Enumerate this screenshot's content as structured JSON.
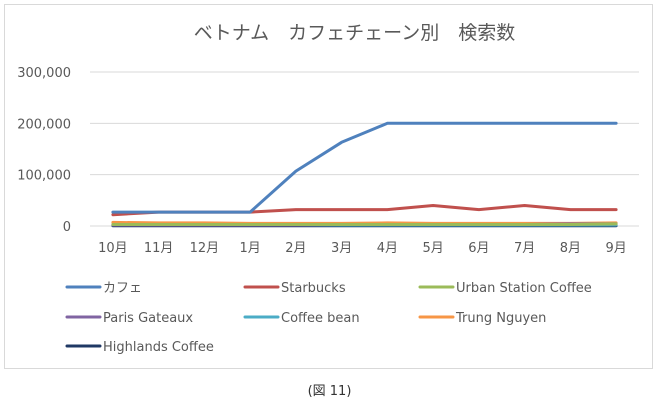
{
  "caption": "(図 11)",
  "chart_data": {
    "type": "line",
    "title": "ベトナム　カフェチェーン別　検索数",
    "categories": [
      "10月",
      "11月",
      "12月",
      "1月",
      "2月",
      "3月",
      "4月",
      "5月",
      "6月",
      "7月",
      "8月",
      "9月"
    ],
    "ylim": [
      0,
      300000
    ],
    "yticks": [
      0,
      100000,
      200000,
      300000
    ],
    "ytick_labels": [
      "0",
      "100,000",
      "200,000",
      "300,000"
    ],
    "grid": true,
    "legend_position": "bottom",
    "series": [
      {
        "name": "カフェ",
        "color": "#4f81bd",
        "values": [
          27000,
          27000,
          27000,
          27000,
          107000,
          163000,
          200000,
          200000,
          200000,
          200000,
          200000,
          200000
        ]
      },
      {
        "name": "Starbucks",
        "color": "#c0504d",
        "values": [
          22000,
          27000,
          27000,
          27000,
          32000,
          32000,
          32000,
          40000,
          32000,
          40000,
          32000,
          32000
        ]
      },
      {
        "name": "Urban Station Coffee",
        "color": "#9bbb59",
        "values": [
          3000,
          3000,
          3000,
          3000,
          3000,
          3000,
          3000,
          3000,
          3000,
          3000,
          3000,
          4000
        ]
      },
      {
        "name": "Paris Gateaux",
        "color": "#8064a2",
        "values": [
          2000,
          2000,
          2000,
          2000,
          2000,
          3000,
          3000,
          3000,
          3000,
          3000,
          4000,
          4000
        ]
      },
      {
        "name": "Coffee bean",
        "color": "#4bacc6",
        "values": [
          2000,
          2000,
          2000,
          2000,
          2000,
          2000,
          2000,
          2000,
          2000,
          2000,
          2000,
          2000
        ]
      },
      {
        "name": "Trung Nguyen",
        "color": "#f79646",
        "values": [
          7000,
          6000,
          6000,
          5000,
          5000,
          5000,
          6000,
          5000,
          5000,
          5000,
          5000,
          6000
        ]
      },
      {
        "name": "Highlands Coffee",
        "color": "#1f3864",
        "values": [
          500,
          500,
          500,
          500,
          500,
          500,
          500,
          500,
          500,
          500,
          500,
          500
        ]
      }
    ]
  }
}
